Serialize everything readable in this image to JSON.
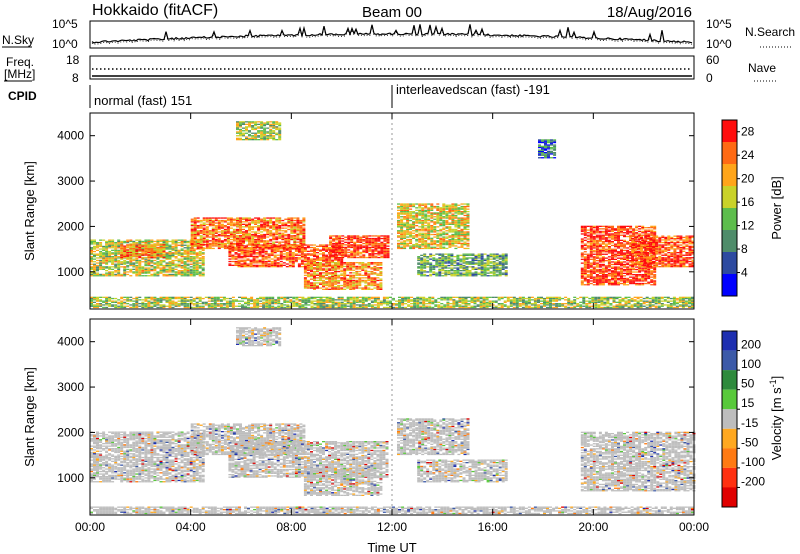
{
  "header": {
    "station": "Hokkaido (fitACF)",
    "beam": "Beam 00",
    "date": "18/Aug/2016"
  },
  "noise_panel": {
    "left_label": "N.Sky",
    "left_ticks": [
      "10^5",
      "10^0"
    ],
    "right_ticks": [
      "10^5",
      "10^0"
    ],
    "right_label": "N.Search"
  },
  "freq_panel": {
    "left_label_1": "Freq.",
    "left_label_2": "[MHz]",
    "left_ticks": [
      "18",
      "8"
    ],
    "right_ticks": [
      "60",
      "0"
    ],
    "right_label": "Nave"
  },
  "cpid_panel": {
    "label": "CPID",
    "programs": [
      {
        "name": "normal (fast) 151",
        "start_hour": 0
      },
      {
        "name": "interleavedscan (fast) -191",
        "start_hour": 12
      }
    ]
  },
  "chart_data": [
    {
      "type": "heatmap",
      "panel": "power",
      "ylabel": "Slant Range [km]",
      "xlabel": "Time UT",
      "x_ticks": [
        "00:00",
        "04:00",
        "08:00",
        "12:00",
        "16:00",
        "20:00",
        "00:00"
      ],
      "xlim_hours": [
        0,
        24
      ],
      "ylim": [
        180,
        4500
      ],
      "y_ticks": [
        1000,
        2000,
        3000,
        4000
      ],
      "colorbar": {
        "label": "Power [dB]",
        "ticks": [
          4,
          8,
          12,
          16,
          20,
          24,
          28
        ],
        "range": [
          0,
          30
        ],
        "colors": [
          "#0000ff",
          "#2d4aa0",
          "#4f8c6a",
          "#5dbd4c",
          "#c9d229",
          "#ffa51a",
          "#ff6a14",
          "#ff0d0d"
        ]
      },
      "echo_regions": [
        {
          "t0": 0.0,
          "t1": 4.5,
          "r0": 900,
          "r1": 1700,
          "level": 0.55
        },
        {
          "t0": 1.2,
          "t1": 3.0,
          "r0": 1300,
          "r1": 1600,
          "level": 0.75
        },
        {
          "t0": 4.0,
          "t1": 8.5,
          "r0": 1500,
          "r1": 2200,
          "level": 0.8
        },
        {
          "t0": 5.5,
          "t1": 10.0,
          "r0": 1100,
          "r1": 1600,
          "level": 0.85
        },
        {
          "t0": 8.5,
          "t1": 11.5,
          "r0": 600,
          "r1": 1200,
          "level": 0.75
        },
        {
          "t0": 9.5,
          "t1": 11.8,
          "r0": 1300,
          "r1": 1800,
          "level": 0.9
        },
        {
          "t0": 12.2,
          "t1": 15.0,
          "r0": 1500,
          "r1": 2500,
          "level": 0.6
        },
        {
          "t0": 13.0,
          "t1": 16.5,
          "r0": 900,
          "r1": 1400,
          "level": 0.4
        },
        {
          "t0": 19.5,
          "t1": 22.5,
          "r0": 700,
          "r1": 2000,
          "level": 0.9
        },
        {
          "t0": 21.5,
          "t1": 24.0,
          "r0": 1100,
          "r1": 1800,
          "level": 0.85
        },
        {
          "t0": 5.8,
          "t1": 7.5,
          "r0": 3900,
          "r1": 4300,
          "level": 0.5
        },
        {
          "t0": 17.8,
          "t1": 18.5,
          "r0": 3500,
          "r1": 3900,
          "level": 0.25
        },
        {
          "t0": 0.0,
          "t1": 24.0,
          "r0": 200,
          "r1": 450,
          "level": 0.5
        }
      ]
    },
    {
      "type": "heatmap",
      "panel": "velocity",
      "ylabel": "Slant Range [km]",
      "xlabel": "Time UT",
      "x_ticks": [
        "00:00",
        "04:00",
        "08:00",
        "12:00",
        "16:00",
        "20:00",
        "00:00"
      ],
      "xlim_hours": [
        0,
        24
      ],
      "ylim": [
        180,
        4500
      ],
      "y_ticks": [
        1000,
        2000,
        3000,
        4000
      ],
      "colorbar": {
        "label": "Velocity [m s-1]",
        "ticks": [
          200,
          100,
          50,
          15,
          -15,
          -50,
          -100,
          -200
        ],
        "colors": [
          "#1e2fb0",
          "#3c5aa8",
          "#2e8a3c",
          "#58c93a",
          "#bdbdbd",
          "#ffa820",
          "#ff7a12",
          "#ff3010",
          "#e00000"
        ]
      },
      "echo_regions": [
        {
          "t0": 0.0,
          "t1": 4.5,
          "r0": 900,
          "r1": 2000
        },
        {
          "t0": 4.0,
          "t1": 8.5,
          "r0": 1500,
          "r1": 2200
        },
        {
          "t0": 5.5,
          "t1": 11.8,
          "r0": 1000,
          "r1": 1800
        },
        {
          "t0": 8.5,
          "t1": 11.5,
          "r0": 600,
          "r1": 1200
        },
        {
          "t0": 12.2,
          "t1": 15.0,
          "r0": 1500,
          "r1": 2300
        },
        {
          "t0": 13.0,
          "t1": 16.5,
          "r0": 900,
          "r1": 1400
        },
        {
          "t0": 19.5,
          "t1": 24.0,
          "r0": 700,
          "r1": 2000
        },
        {
          "t0": 5.8,
          "t1": 7.5,
          "r0": 3900,
          "r1": 4300
        },
        {
          "t0": 0.0,
          "t1": 24.0,
          "r0": 200,
          "r1": 350
        }
      ]
    }
  ]
}
